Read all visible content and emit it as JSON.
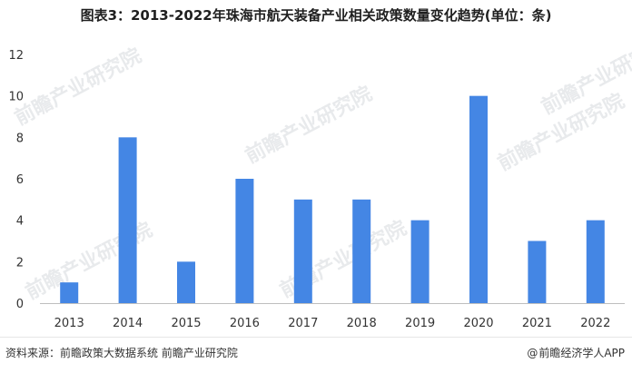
{
  "header": {
    "title": "图表3：2013-2022年珠海市航天装备产业相关政策数量变化趋势(单位：条)"
  },
  "footer": {
    "source": "资料来源：前瞻政策大数据系统 前瞻产业研究院",
    "brand_icon": "at-sign-icon",
    "brand_glyph": "@",
    "brand": "前瞻经济学人APP"
  },
  "watermark": {
    "text": "前瞻产业研究院"
  },
  "colors": {
    "bar": "#4486e4",
    "axis": "#bfbfbf",
    "tick_text": "#333333"
  },
  "chart_data": {
    "type": "bar",
    "title": "图表3：2013-2022年珠海市航天装备产业相关政策数量变化趋势(单位：条)",
    "xlabel": "",
    "ylabel": "",
    "categories": [
      "2013",
      "2014",
      "2015",
      "2016",
      "2017",
      "2018",
      "2019",
      "2020",
      "2021",
      "2022"
    ],
    "values": [
      1,
      8,
      2,
      6,
      5,
      5,
      4,
      10,
      3,
      4
    ],
    "ylim": [
      0,
      12
    ],
    "yticks": [
      0,
      2,
      4,
      6,
      8,
      10,
      12
    ],
    "grid": false,
    "legend": "none"
  }
}
